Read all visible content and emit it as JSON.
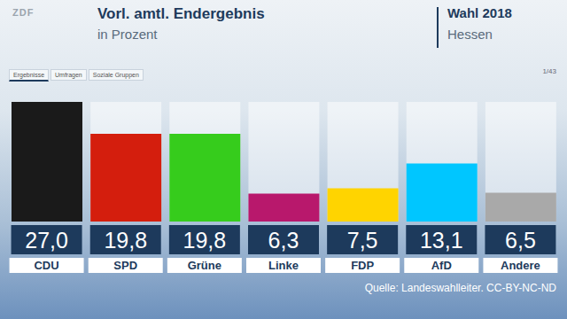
{
  "chart_data": {
    "type": "bar",
    "logo": "ZDF",
    "title": "Vorl. amtl. Endergebnis",
    "subtitle": "in Prozent",
    "election": "Wahl 2018",
    "region": "Hessen",
    "tabs": [
      "Ergebnisse",
      "Umfragen",
      "Soziale Gruppen"
    ],
    "page": "1/43",
    "source": "Quelle: Landeswahlleiter. CC-BY-NC-ND",
    "categories": [
      "CDU",
      "SPD",
      "Grüne",
      "Linke",
      "FDP",
      "AfD",
      "Andere"
    ],
    "values": [
      27.0,
      19.8,
      19.8,
      6.3,
      7.5,
      13.1,
      6.5
    ],
    "value_labels": [
      "27,0",
      "19,8",
      "19,8",
      "6,3",
      "7,5",
      "13,1",
      "6,5"
    ],
    "colors": [
      "#1a1a1a",
      "#d41e0d",
      "#36cc1c",
      "#b8186c",
      "#ffd400",
      "#00c6ff",
      "#a9a9a9"
    ],
    "ylim": [
      0,
      27
    ],
    "data_labels": true,
    "tick_labels": "x",
    "grid": false
  }
}
